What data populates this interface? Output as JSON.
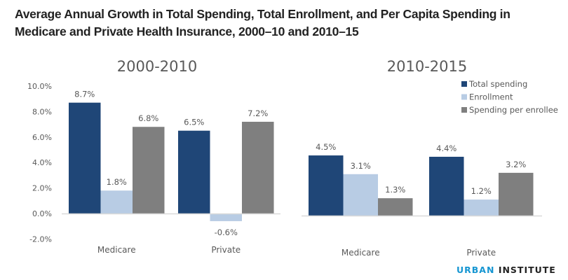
{
  "title": "Average Annual Growth in Total Spending, Total Enrollment, and Per Capita Spending in Medicare and Private Health Insurance, 2000–10 and 2010–15",
  "brand": {
    "part1": "URBAN",
    "part2": "INSTITUTE"
  },
  "colors": {
    "Total spending": "#1f4677",
    "Enrollment": "#b8cce4",
    "Spending per enrollee": "#7f7f7f",
    "axis": "#d9d9d9",
    "brand_blue": "#1696d2"
  },
  "chart_data": [
    {
      "type": "bar",
      "title": "2000-2010",
      "categories": [
        "Medicare",
        "Private"
      ],
      "series": [
        {
          "name": "Total spending",
          "values": [
            8.7,
            6.5
          ]
        },
        {
          "name": "Enrollment",
          "values": [
            1.8,
            -0.6
          ]
        },
        {
          "name": "Spending per enrollee",
          "values": [
            6.8,
            7.2
          ]
        }
      ],
      "data_labels": [
        [
          "8.7%",
          "6.5%"
        ],
        [
          "1.8%",
          "-0.6%"
        ],
        [
          "6.8%",
          "7.2%"
        ]
      ],
      "ylim": [
        -2,
        10
      ],
      "yticks": [
        10,
        8,
        6,
        4,
        2,
        0,
        -2
      ],
      "ytick_labels": [
        "10.0%",
        "8.0%",
        "6.0%",
        "4.0%",
        "2.0%",
        "0.0%",
        "-2.0%"
      ],
      "xlabel": "",
      "ylabel": "",
      "grid": false,
      "legend": "none"
    },
    {
      "type": "bar",
      "title": "2010-2015",
      "categories": [
        "Medicare",
        "Private"
      ],
      "series": [
        {
          "name": "Total spending",
          "values": [
            4.5,
            4.4
          ]
        },
        {
          "name": "Enrollment",
          "values": [
            3.1,
            1.2
          ]
        },
        {
          "name": "Spending per enrollee",
          "values": [
            1.3,
            3.2
          ]
        }
      ],
      "data_labels": [
        [
          "4.5%",
          "4.4%"
        ],
        [
          "3.1%",
          "1.2%"
        ],
        [
          "1.3%",
          "3.2%"
        ]
      ],
      "yticks": [],
      "xlabel": "",
      "ylabel": "",
      "grid": false,
      "legend": "top-right",
      "legend_entries": [
        "Total spending",
        "Enrollment",
        "Spending per enrollee"
      ]
    }
  ]
}
